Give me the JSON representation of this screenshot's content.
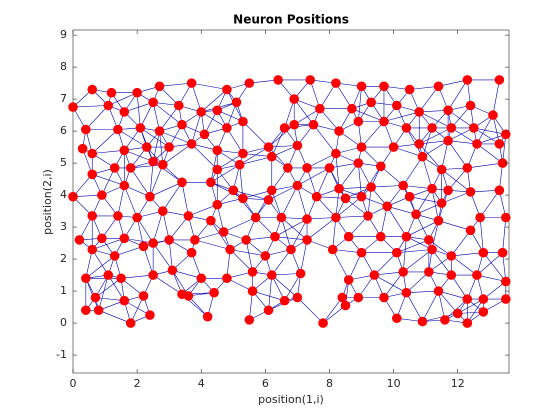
{
  "chart_data": {
    "type": "scatter",
    "title": "Neuron Positions",
    "x_label": "position(1,i)",
    "y_label": "position(2,i)",
    "x": [
      0.6,
      1.2,
      2,
      2.7,
      3.7,
      4.8,
      5.5,
      6.4,
      7.4,
      8.2,
      9,
      9.7,
      10.5,
      11.4,
      12.3,
      13.3,
      0,
      1.1,
      1.6,
      2.5,
      3.3,
      4,
      4.5,
      5.1,
      6.9,
      7.7,
      8.7,
      9.3,
      10.1,
      10.8,
      11.7,
      12.4,
      13.1,
      0.4,
      1.4,
      2.1,
      2.7,
      3.4,
      4.1,
      4.8,
      5.3,
      6.6,
      6.9,
      7.5,
      8.3,
      8.9,
      9.7,
      10.4,
      11.2,
      11.8,
      12.5,
      13.5,
      0.3,
      0.6,
      1.6,
      2.3,
      3,
      3.7,
      4.5,
      5.3,
      6.1,
      7,
      8.2,
      9,
      10,
      10.8,
      11.7,
      12.6,
      13.3,
      0.6,
      1.3,
      1.8,
      2.5,
      2.8,
      4.5,
      5.2,
      6.2,
      6.7,
      7.3,
      8,
      8.9,
      9.6,
      10.9,
      11.5,
      12.3,
      13.4,
      1.6,
      3.4,
      4.3,
      5,
      6.2,
      7,
      8.3,
      9.3,
      10.3,
      11.2,
      11.7,
      12.4,
      13.3,
      0,
      0.9,
      2.4,
      4.5,
      5.3,
      6.1,
      7.6,
      8.5,
      9,
      9.8,
      10.5,
      11.5,
      0.6,
      1.4,
      2,
      2.8,
      3.6,
      4.3,
      5.7,
      6.5,
      7.3,
      8.2,
      9.2,
      10.7,
      11.4,
      12.7,
      13.5,
      0.2,
      0.9,
      1.6,
      2.5,
      3,
      3.8,
      4.7,
      5.4,
      6.3,
      7.3,
      8.6,
      9.6,
      10.4,
      11.1,
      12.4,
      0.6,
      1.3,
      2.2,
      3.7,
      4.9,
      6,
      6.8,
      8.1,
      9,
      10.1,
      11.2,
      11.8,
      12.8,
      13.4,
      0.4,
      1.1,
      1.5,
      2.5,
      3.1,
      4,
      4.8,
      5.6,
      6.2,
      7.1,
      8.6,
      9.4,
      10.3,
      11.1,
      11.8,
      12.6,
      13.5,
      0.7,
      1.6,
      2.2,
      3.4,
      3.6,
      4.4,
      5.6,
      6.6,
      7,
      8.4,
      8.9,
      9.7,
      10.4,
      11.4,
      12.3,
      12.8,
      13.5,
      0.4,
      0.8,
      1.8,
      2.4,
      4.2,
      5.5,
      6.1,
      7.8,
      8.5,
      10.1,
      10.9,
      11.6,
      12,
      12.3,
      12.8
    ],
    "values": [
      7.3,
      7.2,
      7.2,
      7.4,
      7.5,
      7.3,
      7.5,
      7.6,
      7.6,
      7.5,
      7.4,
      7.4,
      7.3,
      7.4,
      7.6,
      7.6,
      6.75,
      6.8,
      6.6,
      6.9,
      6.8,
      6.6,
      6.65,
      6.9,
      7,
      6.7,
      6.7,
      6.9,
      6.8,
      6.6,
      6.65,
      6.8,
      6.5,
      6.05,
      6.05,
      6.1,
      6,
      6.2,
      5.9,
      6.1,
      6.3,
      6.1,
      6.2,
      6.2,
      6,
      6.3,
      6.3,
      6.1,
      6.1,
      6.1,
      6.1,
      5.9,
      5.45,
      5.3,
      5.4,
      5.5,
      5.5,
      5.6,
      5.4,
      5.3,
      5.5,
      5.55,
      5.3,
      5.5,
      5.5,
      5.6,
      5.7,
      5.6,
      5.6,
      4.65,
      4.85,
      4.85,
      5.05,
      4.95,
      4.8,
      4.95,
      5.2,
      4.85,
      4.85,
      4.85,
      5,
      4.9,
      5.2,
      4.8,
      4.85,
      5,
      4.3,
      4.4,
      4.4,
      4.15,
      4.15,
      4.3,
      4.2,
      4.25,
      4.3,
      4.2,
      4.15,
      4.1,
      4.15,
      3.95,
      4,
      3.95,
      3.7,
      3.9,
      3.85,
      3.95,
      3.9,
      3.95,
      3.65,
      3.95,
      3.75,
      3.35,
      3.35,
      3.3,
      3.5,
      3.35,
      3.2,
      3.3,
      3.3,
      3.25,
      3.3,
      3.35,
      3.4,
      3.2,
      3.3,
      3.3,
      2.6,
      2.65,
      2.65,
      2.5,
      2.6,
      2.6,
      2.85,
      2.6,
      2.7,
      2.6,
      2.7,
      2.7,
      2.7,
      2.6,
      2.9,
      2.3,
      2.1,
      2.4,
      2.2,
      2.3,
      2.1,
      2.3,
      2.3,
      2.2,
      2.2,
      2.3,
      2.1,
      2.2,
      2.2,
      1.4,
      1.5,
      1.4,
      1.5,
      1.65,
      1.4,
      1.4,
      1.6,
      1.5,
      1.55,
      1.35,
      1.5,
      1.6,
      1.6,
      1.5,
      1.5,
      1.3,
      0.8,
      0.7,
      0.85,
      0.9,
      0.85,
      0.95,
      1,
      0.7,
      0.8,
      0.8,
      0.8,
      0.8,
      0.95,
      1,
      0.75,
      0.75,
      0.75,
      0.4,
      0.4,
      0,
      0.25,
      0.2,
      0.1,
      0.4,
      0,
      0.55,
      0.15,
      0.05,
      0.1,
      0.3,
      0,
      0.35
    ],
    "color": "#ff0000",
    "edge_color": "#0000b4",
    "xlim": [
      0,
      13.6
    ],
    "ylim": [
      -1.56,
      9.16
    ],
    "xticks": [
      0,
      2,
      4,
      6,
      8,
      10,
      12
    ],
    "yticks": [
      -1,
      0,
      1,
      2,
      3,
      4,
      5,
      6,
      7,
      8,
      9
    ]
  }
}
